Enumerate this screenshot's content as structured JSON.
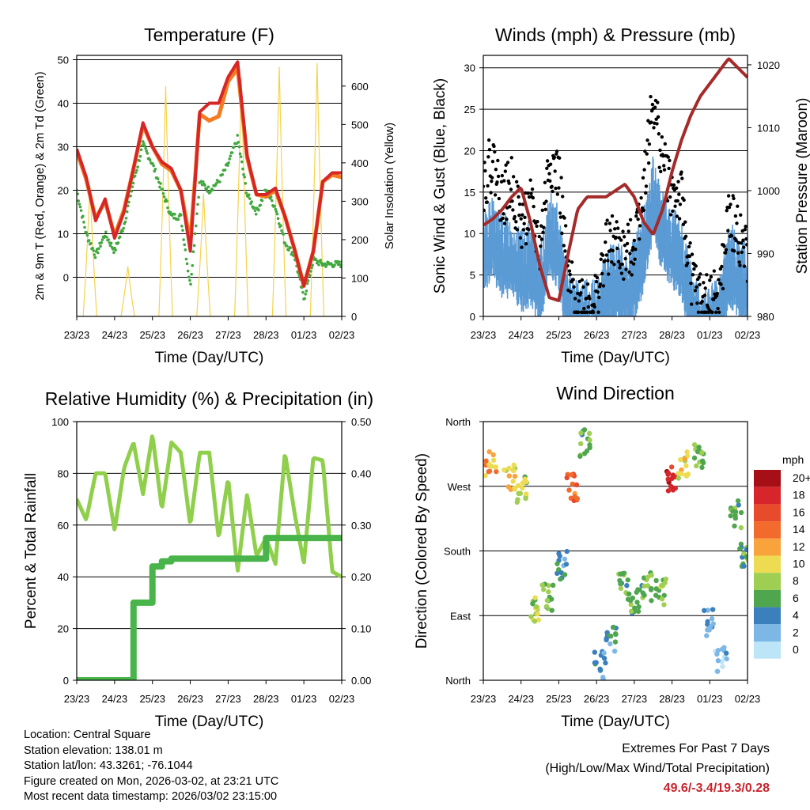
{
  "chart_data": [
    {
      "id": "temperature",
      "type": "line",
      "title": "Temperature (F)",
      "xlabel": "Time (Day/UTC)",
      "ylabel": "2m & 9m T (Red, Orange) & 2m Td (Green)",
      "y2label": "Solar Insolation (Yellow)",
      "x_ticks": [
        "23/23",
        "24/23",
        "25/23",
        "26/23",
        "27/23",
        "28/23",
        "01/23",
        "02/23"
      ],
      "ylim": [
        -9,
        51
      ],
      "y_ticks": [
        0,
        10,
        20,
        30,
        40,
        50
      ],
      "y2lim": [
        0,
        680
      ],
      "y2_ticks": [
        0,
        100,
        200,
        300,
        400,
        500,
        600
      ],
      "grid": "horizontal",
      "x": [
        0,
        0.25,
        0.5,
        0.75,
        1,
        1.25,
        1.5,
        1.75,
        2,
        2.25,
        2.5,
        2.75,
        3,
        3.25,
        3.5,
        3.75,
        4,
        4.25,
        4.5,
        4.75,
        5,
        5.25,
        5.5,
        5.75,
        6,
        6.25,
        6.5,
        6.75,
        7
      ],
      "series": [
        {
          "name": "2m T",
          "color": "#d62727",
          "values": [
            29.5,
            23,
            13,
            18,
            9,
            15,
            25,
            35.5,
            30,
            26.5,
            25,
            20,
            6,
            38,
            40,
            40,
            46,
            49.5,
            28,
            19,
            19,
            20.5,
            14,
            6.5,
            -2,
            6,
            22,
            24,
            24
          ]
        },
        {
          "name": "9m T",
          "color": "#f47b20",
          "values": [
            29,
            22.5,
            13.5,
            17.5,
            9.5,
            15.5,
            25,
            35,
            30,
            26,
            24.5,
            20,
            8,
            37.5,
            36,
            37,
            45,
            48,
            27.5,
            19,
            18.5,
            20,
            14,
            6.5,
            -2,
            6,
            22,
            23.5,
            23
          ]
        },
        {
          "name": "2m Td",
          "color": "#41a83e",
          "values": [
            20,
            10,
            5,
            10,
            6,
            12,
            22,
            30.5,
            26,
            20,
            14,
            14,
            -2,
            22,
            20,
            22,
            26,
            32,
            19,
            15,
            20,
            16,
            8,
            5,
            -5,
            4,
            3,
            3,
            3
          ]
        },
        {
          "name": "Solar Insolation",
          "color": "#f5d34a",
          "axis": "y2",
          "peaks": [
            {
              "day": 0.35,
              "value": 340
            },
            {
              "day": 1.35,
              "value": 130
            },
            {
              "day": 2.35,
              "value": 600
            },
            {
              "day": 3.35,
              "value": 320
            },
            {
              "day": 4.35,
              "value": 620
            },
            {
              "day": 5.35,
              "value": 650
            },
            {
              "day": 6.35,
              "value": 660
            }
          ]
        }
      ]
    },
    {
      "id": "winds",
      "type": "scatter",
      "title": "Winds (mph) & Pressure (mb)",
      "xlabel": "Time (Day/UTC)",
      "ylabel": "Sonic Wind & Gust (Blue, Black)",
      "y2label": "Station Pressure (Maroon)",
      "x_ticks": [
        "23/23",
        "24/23",
        "25/23",
        "26/23",
        "27/23",
        "28/23",
        "01/23",
        "02/23"
      ],
      "ylim": [
        0,
        31.5
      ],
      "y_ticks": [
        0,
        5,
        10,
        15,
        20,
        25,
        30
      ],
      "y2lim": [
        980,
        1021.5
      ],
      "y2_ticks": [
        980,
        990,
        1000,
        1010,
        1020
      ],
      "grid": "horizontal",
      "x": [
        0,
        0.25,
        0.5,
        0.75,
        1,
        1.25,
        1.5,
        1.75,
        2,
        2.25,
        2.5,
        2.75,
        3,
        3.25,
        3.5,
        3.75,
        4,
        4.25,
        4.5,
        4.75,
        5,
        5.25,
        5.5,
        5.75,
        6,
        6.25,
        6.5,
        6.75,
        7
      ],
      "series": [
        {
          "name": "Wind",
          "color": "#5b9bd5",
          "values": [
            10,
            11,
            9,
            9,
            7,
            8,
            5,
            12,
            10,
            2,
            1,
            1,
            1,
            5,
            6,
            5,
            6,
            10,
            16,
            12,
            10,
            9,
            3,
            1,
            1,
            1,
            8,
            7,
            5
          ]
        },
        {
          "name": "Gust",
          "color": "#000000",
          "values": [
            16,
            19,
            14,
            16,
            11,
            13,
            8,
            19,
            17,
            4,
            2,
            2,
            2,
            8,
            9,
            7,
            9,
            16,
            26,
            19,
            15,
            14,
            5,
            2,
            2,
            2,
            12,
            10,
            7
          ]
        },
        {
          "name": "Station Pressure",
          "color": "#a52a2a",
          "axis": "y2",
          "values": [
            994.5,
            995.5,
            997,
            999,
            1000.5,
            995,
            988,
            983,
            982.5,
            990,
            997,
            999,
            999,
            999,
            1000,
            1001,
            999,
            995,
            993,
            997,
            1003,
            1008,
            1012,
            1015,
            1017,
            1019,
            1021,
            1019.5,
            1018
          ]
        }
      ]
    },
    {
      "id": "humidity",
      "type": "line",
      "title": "Relative Humidity (%) & Precipitation (in)",
      "xlabel": "Time (Day/UTC)",
      "ylabel": "Percent & Total Rainfall",
      "x_ticks": [
        "23/23",
        "24/23",
        "25/23",
        "26/23",
        "27/23",
        "28/23",
        "01/23",
        "02/23"
      ],
      "ylim": [
        0,
        100
      ],
      "y_ticks": [
        0,
        20,
        40,
        60,
        80,
        100
      ],
      "y2lim": [
        0,
        0.5
      ],
      "y2_ticks": [
        "0.00",
        "0.10",
        "0.20",
        "0.30",
        "0.40",
        "0.50"
      ],
      "grid": "horizontal",
      "x": [
        0,
        0.25,
        0.5,
        0.75,
        1,
        1.25,
        1.5,
        1.75,
        2,
        2.25,
        2.5,
        2.75,
        3,
        3.25,
        3.5,
        3.75,
        4,
        4.25,
        4.5,
        4.75,
        5,
        5.25,
        5.5,
        5.75,
        6,
        6.25,
        6.5,
        6.75,
        7
      ],
      "series": [
        {
          "name": "Relative Humidity",
          "color": "#8fcf4c",
          "values": [
            70,
            62,
            80,
            80,
            58,
            82,
            92,
            72,
            95,
            66,
            92,
            88,
            60,
            88,
            88,
            55,
            78,
            42,
            72,
            48,
            55,
            45,
            88,
            65,
            45,
            86,
            85,
            42,
            40
          ]
        },
        {
          "name": "Total Precipitation",
          "color": "#48b44a",
          "axis": "y2",
          "values": [
            0,
            0,
            0,
            0,
            0,
            0,
            0.15,
            0.15,
            0.22,
            0.23,
            0.235,
            0.235,
            0.235,
            0.235,
            0.235,
            0.235,
            0.235,
            0.235,
            0.235,
            0.235,
            0.275,
            0.275,
            0.275,
            0.275,
            0.275,
            0.275,
            0.275,
            0.275,
            0.275
          ]
        }
      ]
    },
    {
      "id": "direction",
      "type": "scatter",
      "title": "Wind Direction",
      "xlabel": "Time (Day/UTC)",
      "ylabel": "Direction (Colored By Speed)",
      "x_ticks": [
        "23/23",
        "24/23",
        "25/23",
        "26/23",
        "27/23",
        "28/23",
        "01/23",
        "02/23"
      ],
      "y_ticks": [
        "North",
        "East",
        "South",
        "West",
        "North"
      ],
      "ylim": [
        0,
        360
      ],
      "colorbar_title": "mph",
      "colorbar_labels": [
        "20+",
        "18",
        "16",
        "14",
        "12",
        "10",
        "8",
        "6",
        "4",
        "2",
        "0"
      ],
      "colorbar_colors": [
        "#a50f15",
        "#d7262b",
        "#e84a2c",
        "#f26b2c",
        "#f9a33c",
        "#eddc52",
        "#9fcf52",
        "#4fa64f",
        "#3b80bd",
        "#7cb7e5",
        "#bde5f8"
      ],
      "x": [
        0.2,
        0.7,
        1.0,
        1.35,
        1.7,
        2.1,
        2.35,
        2.7,
        3.1,
        3.4,
        3.7,
        4.0,
        4.35,
        4.7,
        5.0,
        5.3,
        5.7,
        6.0,
        6.3,
        6.7,
        6.9
      ],
      "series": [
        {
          "name": "Direction (deg)",
          "values": [
            300,
            285,
            265,
            100,
            115,
            160,
            270,
            330,
            20,
            60,
            130,
            110,
            130,
            125,
            280,
            300,
            310,
            80,
            30,
            230,
            175
          ],
          "speed": [
            12,
            10,
            8,
            8,
            6,
            4,
            14,
            6,
            3,
            4,
            6,
            5,
            6,
            7,
            18,
            9,
            7,
            2,
            1,
            6,
            5
          ]
        }
      ]
    }
  ],
  "footer": {
    "location": "Location: Central Square",
    "elevation": "Station elevation: 138.01 m",
    "latlon": "Station lat/lon: 43.3261; -76.1044",
    "created": "Figure created on Mon, 2026-03-02, at 23:21 UTC",
    "recent": "Most recent data timestamp: 2026/03/02 23:15:00",
    "extremes_title": "Extremes For Past 7 Days",
    "extremes_sub": "(High/Low/Max Wind/Total Precipitation)",
    "extremes_value": "49.6/-3.4/19.3/0.28"
  }
}
